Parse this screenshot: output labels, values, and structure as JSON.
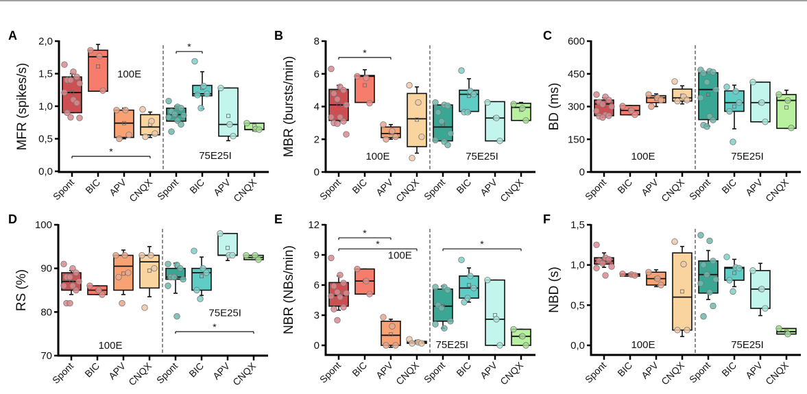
{
  "chart_data": [
    {
      "type": "box",
      "panel": "A",
      "ylabel": "MFR (spikes/s)",
      "ylim": [
        0,
        2.0
      ],
      "yticks": [
        "0,0",
        "0,5",
        "1,0",
        "1,5",
        "2,0"
      ],
      "ytick_values": [
        0,
        0.5,
        1.0,
        1.5,
        2.0
      ],
      "categories": [
        "Spont",
        "BIC",
        "APV",
        "CNQX",
        "Spont",
        "BIC",
        "APV",
        "CNQX"
      ],
      "group_labels": [
        "100E",
        "75E25I"
      ],
      "group_label_pos": [
        "upper",
        "lower"
      ],
      "boxes": [
        {
          "q1": 0.9,
          "median": 1.21,
          "q3": 1.45,
          "mean": 1.21,
          "wlo": 0.9,
          "whi": 1.5,
          "points": [
            1.64,
            1.53,
            1.45,
            1.4,
            1.4,
            1.35,
            1.21,
            1.1,
            1.05,
            0.9,
            0.83,
            0.82
          ]
        },
        {
          "q1": 1.23,
          "median": 1.76,
          "q3": 1.86,
          "mean": 1.61,
          "wlo": 1.25,
          "whi": 1.95,
          "points": [
            1.86,
            1.77,
            1.24
          ]
        },
        {
          "q1": 0.52,
          "median": 0.74,
          "q3": 0.94,
          "mean": 0.74,
          "wlo": 0.5,
          "whi": 0.97,
          "points": [
            0.94,
            0.94,
            0.56,
            0.5
          ]
        },
        {
          "q1": 0.56,
          "median": 0.68,
          "q3": 0.87,
          "mean": 0.72,
          "wlo": 0.52,
          "whi": 0.91,
          "points": [
            0.95,
            0.77,
            0.58,
            0.53
          ]
        },
        {
          "q1": 0.77,
          "median": 0.87,
          "q3": 0.97,
          "mean": 0.87,
          "wlo": 0.77,
          "whi": 1.0,
          "points": [
            1.08,
            0.99,
            0.97,
            0.92,
            0.88,
            0.86,
            0.83,
            0.78,
            0.72,
            0.61
          ]
        },
        {
          "q1": 1.16,
          "median": 1.19,
          "q3": 1.32,
          "mean": 1.28,
          "wlo": 0.96,
          "whi": 1.53,
          "points": [
            1.69,
            1.31,
            1.19,
            1.17,
            0.97
          ]
        },
        {
          "q1": 0.54,
          "median": 0.72,
          "q3": 1.28,
          "mean": 0.85,
          "wlo": 0.47,
          "whi": 1.28,
          "points": [
            1.28,
            0.72,
            0.54
          ]
        },
        {
          "q1": 0.64,
          "median": 0.64,
          "q3": 0.74,
          "mean": 0.7,
          "wlo": 0.62,
          "whi": 0.74,
          "points": [
            0.74,
            0.65,
            0.64
          ]
        }
      ],
      "significance": [
        {
          "from": 0,
          "to": 3,
          "y": 0.23,
          "label": "*"
        },
        {
          "from": 4,
          "to": 5,
          "y": 1.84,
          "label": "*"
        }
      ]
    },
    {
      "type": "box",
      "panel": "B",
      "ylabel": "MBR (bursts/min)",
      "ylim": [
        0,
        8
      ],
      "yticks": [
        "0",
        "2",
        "4",
        "6",
        "8"
      ],
      "ytick_values": [
        0,
        2,
        4,
        6,
        8
      ],
      "categories": [
        "Spont",
        "BIC",
        "APV",
        "CNQX",
        "Spont",
        "BIC",
        "APV",
        "CNQX"
      ],
      "group_labels": [
        "100E",
        "75E25I"
      ],
      "group_label_pos": [
        "lower",
        "lower"
      ],
      "boxes": [
        {
          "q1": 3.15,
          "median": 4.1,
          "q3": 5.05,
          "mean": 4.1,
          "wlo": 3.1,
          "whi": 5.3,
          "points": [
            6.3,
            5.2,
            5.0,
            4.8,
            4.45,
            4.1,
            3.35,
            3.35,
            3.1,
            3.0,
            2.95,
            2.3
          ]
        },
        {
          "q1": 4.25,
          "median": 5.85,
          "q3": 5.9,
          "mean": 5.3,
          "wlo": 4.3,
          "whi": 6.25,
          "points": [
            5.85,
            5.75,
            4.2
          ]
        },
        {
          "q1": 2.1,
          "median": 2.35,
          "q3": 2.75,
          "mean": 2.4,
          "wlo": 2.0,
          "whi": 2.9,
          "points": [
            2.9,
            2.5,
            2.15,
            2.0
          ]
        },
        {
          "q1": 1.55,
          "median": 3.25,
          "q3": 4.8,
          "mean": 3.2,
          "wlo": 1.15,
          "whi": 5.2,
          "points": [
            5.3,
            4.25,
            2.15,
            0.85
          ]
        },
        {
          "q1": 1.9,
          "median": 2.75,
          "q3": 4.1,
          "mean": 2.9,
          "wlo": 1.9,
          "whi": 4.0,
          "points": [
            4.25,
            4.1,
            4.05,
            3.65,
            3.1,
            2.35,
            1.95,
            1.85,
            1.65
          ]
        },
        {
          "q1": 3.7,
          "median": 4.75,
          "q3": 5.0,
          "mean": 4.65,
          "wlo": 3.6,
          "whi": 5.7,
          "points": [
            6.2,
            4.95,
            4.75,
            3.65,
            3.65
          ]
        },
        {
          "q1": 1.9,
          "median": 3.3,
          "q3": 4.3,
          "mean": 3.3,
          "wlo": 1.9,
          "whi": 4.3,
          "points": [
            4.25,
            3.3,
            1.9
          ]
        },
        {
          "q1": 3.15,
          "median": 3.95,
          "q3": 4.2,
          "mean": 3.8,
          "wlo": 3.15,
          "whi": 4.25,
          "points": [
            4.15,
            3.9,
            3.15
          ]
        }
      ],
      "significance": [
        {
          "from": 0,
          "to": 2,
          "y": 7.0,
          "label": "*"
        }
      ]
    },
    {
      "type": "box",
      "panel": "C",
      "ylabel": "BD (ms)",
      "ylim": [
        0,
        600
      ],
      "yticks": [
        "0",
        "150",
        "300",
        "450",
        "600"
      ],
      "ytick_values": [
        0,
        150,
        300,
        450,
        600
      ],
      "categories": [
        "Spont",
        "BIC",
        "APV",
        "CNQX",
        "Spont",
        "BIC",
        "APV",
        "CNQX"
      ],
      "group_labels": [
        "100E",
        "75E25I"
      ],
      "group_label_pos": [
        "lower",
        "lower"
      ],
      "boxes": [
        {
          "q1": 258,
          "median": 312,
          "q3": 330,
          "mean": 305,
          "wlo": 250,
          "whi": 340,
          "points": [
            355,
            345,
            330,
            320,
            310,
            300,
            280,
            262,
            258,
            255,
            250
          ]
        },
        {
          "q1": 262,
          "median": 282,
          "q3": 305,
          "mean": 285,
          "wlo": 262,
          "whi": 305,
          "points": [
            302,
            282,
            262
          ]
        },
        {
          "q1": 318,
          "median": 340,
          "q3": 350,
          "mean": 335,
          "wlo": 300,
          "whi": 358,
          "points": [
            355,
            340,
            330,
            300
          ]
        },
        {
          "q1": 325,
          "median": 340,
          "q3": 380,
          "mean": 350,
          "wlo": 312,
          "whi": 395,
          "points": [
            415,
            345,
            330,
            325
          ]
        },
        {
          "q1": 240,
          "median": 378,
          "q3": 455,
          "mean": 355,
          "wlo": 210,
          "whi": 460,
          "points": [
            468,
            462,
            458,
            452,
            412,
            378,
            340,
            255,
            238,
            215,
            208
          ]
        },
        {
          "q1": 278,
          "median": 318,
          "q3": 372,
          "mean": 300,
          "wlo": 198,
          "whi": 398,
          "points": [
            390,
            370,
            318,
            278,
            138
          ]
        },
        {
          "q1": 230,
          "median": 318,
          "q3": 412,
          "mean": 318,
          "wlo": 230,
          "whi": 412,
          "points": [
            412,
            318,
            230
          ]
        },
        {
          "q1": 200,
          "median": 328,
          "q3": 355,
          "mean": 296,
          "wlo": 200,
          "whi": 375,
          "points": [
            355,
            328,
            202
          ]
        }
      ],
      "significance": []
    },
    {
      "type": "box",
      "panel": "D",
      "ylabel": "RS (%)",
      "ylim": [
        70,
        100
      ],
      "yticks": [
        "70",
        "80",
        "90",
        "100"
      ],
      "ytick_values": [
        70,
        80,
        90,
        100
      ],
      "categories": [
        "Spont",
        "BIC",
        "APV",
        "CNQX",
        "Spont",
        "BIC",
        "APV",
        "CNQX"
      ],
      "group_labels": [
        "100E",
        "75E25I"
      ],
      "group_label_pos": [
        "bottom",
        "middle"
      ],
      "boxes": [
        {
          "q1": 85.0,
          "median": 87.0,
          "q3": 89.0,
          "mean": 87.0,
          "wlo": 84.0,
          "whi": 89.5,
          "points": [
            91,
            90,
            89,
            88,
            88,
            87,
            86,
            86,
            85,
            82,
            82
          ]
        },
        {
          "q1": 84.0,
          "median": 85.0,
          "q3": 86.0,
          "mean": 85.0,
          "wlo": 84.0,
          "whi": 86.0,
          "points": [
            86,
            85,
            84
          ]
        },
        {
          "q1": 85.0,
          "median": 90.5,
          "q3": 93.0,
          "mean": 88.8,
          "wlo": 84.0,
          "whi": 94.2,
          "points": [
            93,
            93,
            89,
            88,
            82
          ]
        },
        {
          "q1": 85.5,
          "median": 91.5,
          "q3": 93.0,
          "mean": 89.5,
          "wlo": 83.5,
          "whi": 95.0,
          "points": [
            93,
            93,
            90,
            81
          ]
        },
        {
          "q1": 87.5,
          "median": 88.0,
          "q3": 90.0,
          "mean": 88.0,
          "wlo": 84.3,
          "whi": 91.2,
          "points": [
            91,
            90.8,
            90,
            88,
            88,
            87.5,
            86,
            79
          ]
        },
        {
          "q1": 85.0,
          "median": 89.0,
          "q3": 90.0,
          "mean": 88.2,
          "wlo": 83.8,
          "whi": 92.6,
          "points": [
            94,
            90,
            89,
            85,
            83
          ]
        },
        {
          "q1": 93.0,
          "median": 93.0,
          "q3": 98.0,
          "mean": 94.7,
          "wlo": 91.8,
          "whi": 98.0,
          "points": [
            98,
            93,
            93
          ]
        },
        {
          "q1": 92.0,
          "median": 92.5,
          "q3": 93.0,
          "mean": 92.5,
          "wlo": 92.0,
          "whi": 93.0,
          "points": [
            93,
            93,
            92
          ]
        }
      ],
      "significance": [
        {
          "from": 4,
          "to": 7,
          "y": 75.5,
          "label": "*"
        }
      ]
    },
    {
      "type": "box",
      "panel": "E",
      "ylabel": "NBR (NBs/min)",
      "ylim": [
        0,
        12
      ],
      "yticks": [
        "0",
        "3",
        "6",
        "9",
        "12"
      ],
      "ytick_values": [
        0,
        3,
        6,
        9,
        12
      ],
      "categories": [
        "Spont",
        "BIC",
        "APV",
        "CNQX",
        "Spont",
        "BIC",
        "APV",
        "CNQX"
      ],
      "group_labels": [
        "100E",
        "75E25I"
      ],
      "group_label_pos": [
        "upper",
        "bottom"
      ],
      "boxes": [
        {
          "q1": 3.9,
          "median": 4.95,
          "q3": 6.25,
          "mean": 5.1,
          "wlo": 3.5,
          "whi": 6.9,
          "points": [
            8.7,
            7.0,
            6.2,
            5.9,
            5.3,
            5.2,
            4.9,
            4.8,
            3.8,
            3.6,
            2.5
          ]
        },
        {
          "q1": 5.1,
          "median": 6.4,
          "q3": 7.6,
          "mean": 6.4,
          "wlo": 5.1,
          "whi": 7.6,
          "points": [
            7.6,
            6.4,
            5.1
          ]
        },
        {
          "q1": 0.0,
          "median": 1.0,
          "q3": 2.4,
          "mean": 1.1,
          "wlo": -0.2,
          "whi": 2.6,
          "points": [
            2.8,
            1.9,
            0.0,
            0.0
          ]
        },
        {
          "q1": 0.2,
          "median": 0.3,
          "q3": 0.4,
          "mean": 0.3,
          "wlo": 0.15,
          "whi": 0.5,
          "points": [
            0.6,
            0.3,
            0.2,
            0.2
          ]
        },
        {
          "q1": 2.4,
          "median": 3.9,
          "q3": 5.6,
          "mean": 3.9,
          "wlo": 1.7,
          "whi": 5.9,
          "points": [
            5.8,
            5.8,
            5.5,
            4.0,
            3.7,
            2.4,
            2.1,
            1.7
          ]
        },
        {
          "q1": 4.7,
          "median": 5.7,
          "q3": 6.9,
          "mean": 6.0,
          "wlo": 4.3,
          "whi": 7.7,
          "points": [
            8.5,
            6.9,
            5.7,
            4.3,
            4.7
          ]
        },
        {
          "q1": 0.0,
          "median": 2.6,
          "q3": 6.5,
          "mean": 3.0,
          "wlo": 0.0,
          "whi": 6.5,
          "points": [
            6.5,
            2.6,
            0.0
          ]
        },
        {
          "q1": 0.0,
          "median": 0.9,
          "q3": 1.6,
          "mean": 0.9,
          "wlo": 0.0,
          "whi": 1.6,
          "points": [
            1.6,
            0.9,
            0.0
          ]
        }
      ],
      "significance": [
        {
          "from": 0,
          "to": 2,
          "y": 10.7,
          "label": "*"
        },
        {
          "from": 0,
          "to": 3,
          "y": 9.6,
          "label": "*"
        },
        {
          "from": 4,
          "to": 7,
          "y": 9.6,
          "label": "*"
        }
      ]
    },
    {
      "type": "box",
      "panel": "F",
      "ylabel": "NBD (s)",
      "ylim": [
        0,
        1.5
      ],
      "yticks": [
        "0,0",
        "0,5",
        "1,0",
        "1,5"
      ],
      "ytick_values": [
        0,
        0.5,
        1.0,
        1.5
      ],
      "categories": [
        "Spont",
        "BIC",
        "APV",
        "CNQX",
        "Spont",
        "BIC",
        "APV",
        "CNQX"
      ],
      "group_labels": [
        "100E",
        "75E25I"
      ],
      "group_label_pos": [
        "bottom",
        "bottom"
      ],
      "boxes": [
        {
          "q1": 1.01,
          "median": 1.05,
          "q3": 1.09,
          "mean": 1.05,
          "wlo": 0.97,
          "whi": 1.15,
          "points": [
            1.25,
            1.09,
            1.07,
            1.05,
            1.02,
            0.98,
            0.96,
            0.87
          ]
        },
        {
          "q1": 0.86,
          "median": 0.88,
          "q3": 0.89,
          "mean": 0.88,
          "wlo": 0.86,
          "whi": 0.89,
          "points": [
            0.89,
            0.88,
            0.87
          ]
        },
        {
          "q1": 0.75,
          "median": 0.83,
          "q3": 0.91,
          "mean": 0.83,
          "wlo": 0.73,
          "whi": 0.94,
          "points": [
            0.91,
            0.83,
            0.75
          ]
        },
        {
          "q1": 0.19,
          "median": 0.6,
          "q3": 1.15,
          "mean": 0.67,
          "wlo": 0.11,
          "whi": 1.23,
          "points": [
            1.29,
            1.01,
            0.19,
            0.19
          ]
        },
        {
          "q1": 0.65,
          "median": 0.88,
          "q3": 1.05,
          "mean": 0.88,
          "wlo": 0.57,
          "whi": 1.18,
          "points": [
            1.37,
            1.3,
            1.05,
            1.0,
            0.88,
            0.82,
            0.77,
            0.66,
            0.49,
            0.36
          ]
        },
        {
          "q1": 0.81,
          "median": 0.96,
          "q3": 0.97,
          "mean": 0.9,
          "wlo": 0.73,
          "whi": 1.07,
          "points": [
            1.1,
            0.97,
            0.96,
            0.81,
            0.67
          ]
        },
        {
          "q1": 0.46,
          "median": 0.7,
          "q3": 0.93,
          "mean": 0.7,
          "wlo": 0.37,
          "whi": 1.02,
          "points": [
            0.93,
            0.7,
            0.46
          ]
        },
        {
          "q1": 0.14,
          "median": 0.17,
          "q3": 0.21,
          "mean": 0.17,
          "wlo": 0.14,
          "whi": 0.21,
          "points": [
            0.21,
            0.14
          ]
        }
      ],
      "significance": []
    }
  ],
  "colors": {
    "fills": [
      "#cd4f51",
      "#f67d6c",
      "#f8a273",
      "#f9d49f",
      "#3aa794",
      "#5fcdc6",
      "#c2f5ec",
      "#b8f0a0"
    ],
    "points": [
      "#d98a8e",
      "#e98e88",
      "#eba78a",
      "#efc8a8",
      "#6fb9ad",
      "#7ecfc9",
      "#a9e6dc",
      "#a5dd92"
    ],
    "stroke": "#111111",
    "divider": "#555555"
  }
}
